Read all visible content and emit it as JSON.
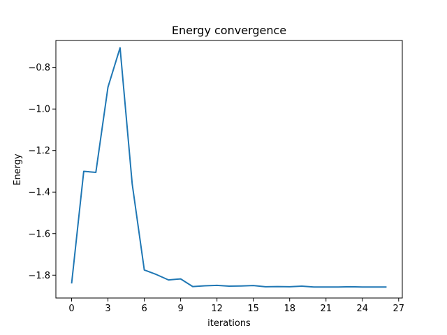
{
  "chart_data": {
    "type": "line",
    "title": "Energy convergence",
    "xlabel": "iterations",
    "ylabel": "Energy",
    "xlim": [
      -1.3,
      27.3
    ],
    "ylim": [
      -1.91,
      -0.67
    ],
    "xticks": [
      0,
      3,
      6,
      9,
      12,
      15,
      18,
      21,
      24,
      27
    ],
    "yticks": [
      -1.8,
      -1.6,
      -1.4,
      -1.2,
      -1.0,
      -0.8
    ],
    "ytick_labels": [
      "−1.8",
      "−1.6",
      "−1.4",
      "−1.2",
      "−1.0",
      "−0.8"
    ],
    "grid": false,
    "series": [
      {
        "color": "#1f77b4",
        "x": [
          0,
          1,
          2,
          3,
          4,
          5,
          6,
          7,
          8,
          9,
          10,
          11,
          12,
          13,
          14,
          15,
          16,
          17,
          18,
          19,
          20,
          21,
          22,
          23,
          24,
          25,
          26
        ],
        "y": [
          -1.84,
          -1.3,
          -1.305,
          -0.895,
          -0.705,
          -1.36,
          -1.775,
          -1.797,
          -1.823,
          -1.818,
          -1.855,
          -1.851,
          -1.849,
          -1.853,
          -1.852,
          -1.85,
          -1.856,
          -1.855,
          -1.856,
          -1.853,
          -1.857,
          -1.857,
          -1.857,
          -1.856,
          -1.857,
          -1.857,
          -1.857
        ]
      }
    ]
  }
}
